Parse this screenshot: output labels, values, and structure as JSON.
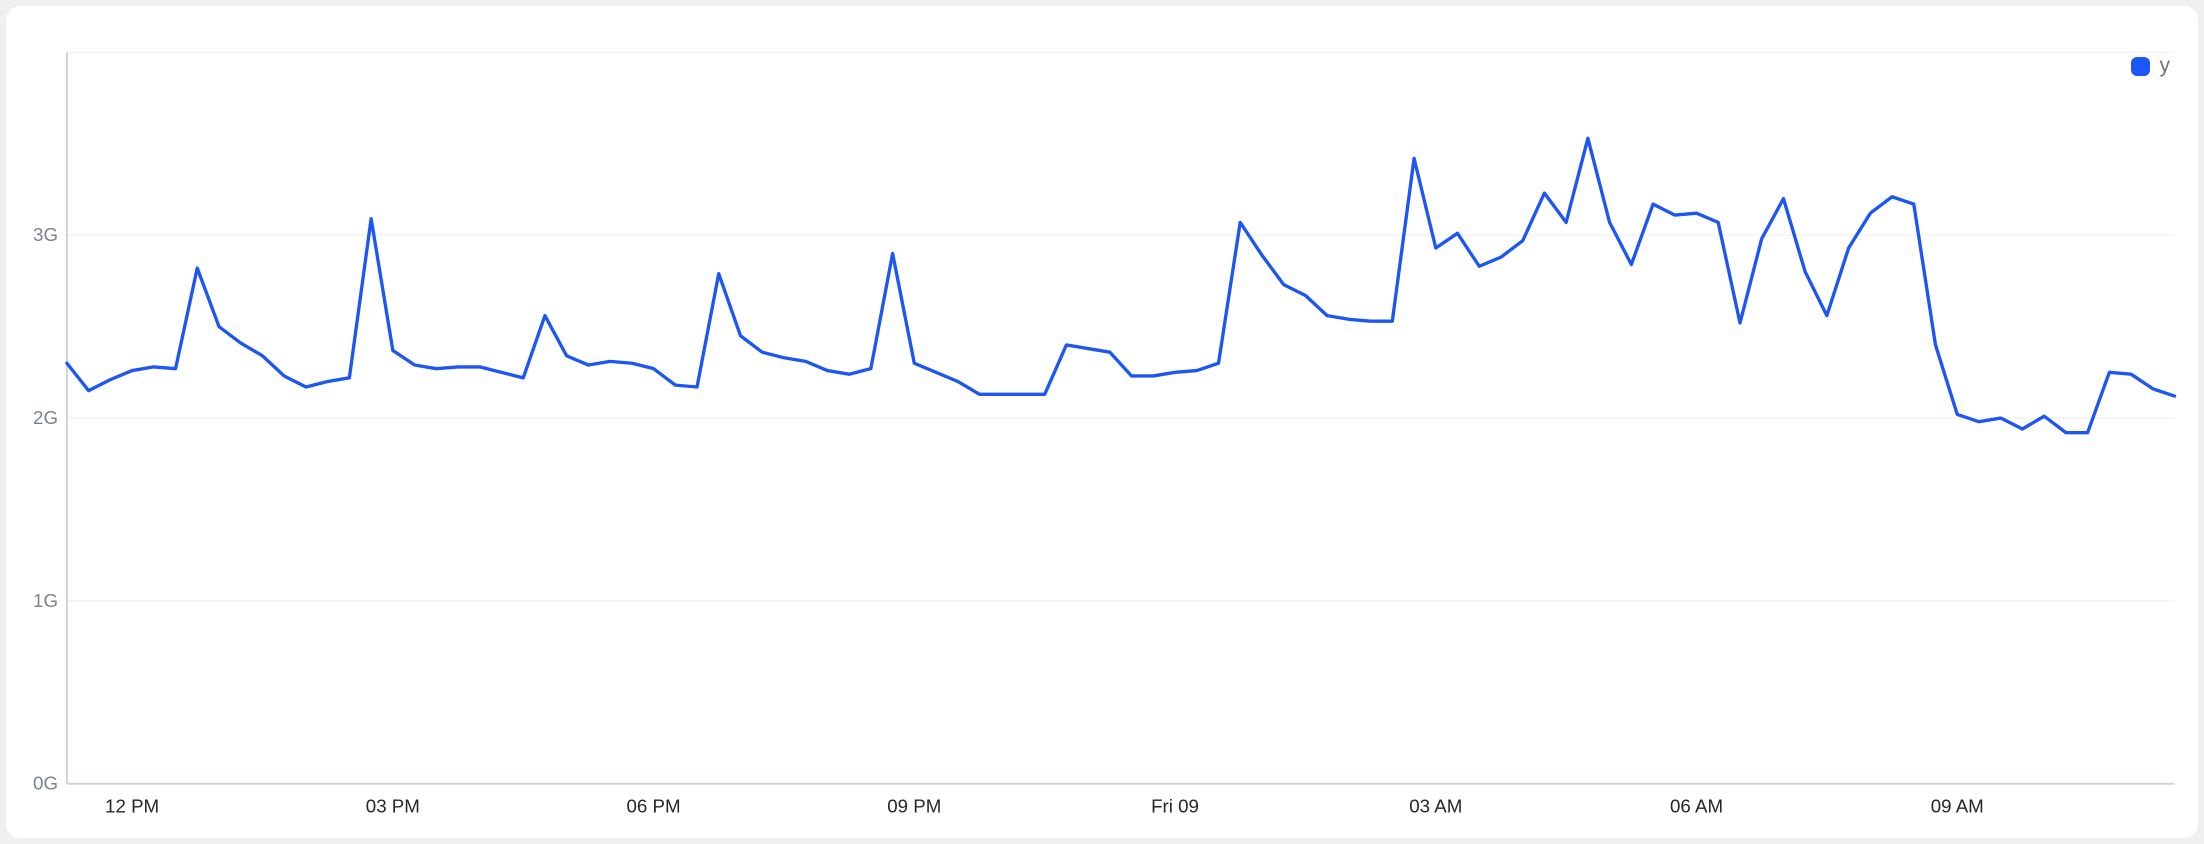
{
  "legend": {
    "items": [
      {
        "label": "y",
        "color": "#1c57f5"
      }
    ]
  },
  "colors": {
    "page_background": "#eef0f2",
    "card_background": "#ffffff",
    "line": "#1c57f5",
    "axis_line": "#ccd3dd",
    "gridline": "#f1f2f4",
    "y_label": "#7b828d",
    "x_label": "#23262b",
    "legend_text": "#6b7280"
  },
  "chart_data": {
    "type": "line",
    "title": "",
    "xlabel": "",
    "ylabel": "",
    "y_unit": "G",
    "ylim": [
      0,
      4
    ],
    "grid": true,
    "legend_position": "top-right",
    "y_tick_values": [
      0,
      1,
      2,
      3
    ],
    "y_tick_labels": [
      "0G",
      "1G",
      "2G",
      "3G"
    ],
    "x_tick_indices": [
      3,
      15,
      27,
      39,
      51,
      63,
      75,
      87
    ],
    "x_tick_labels": [
      "12 PM",
      "03 PM",
      "06 PM",
      "09 PM",
      "Fri 09",
      "03 AM",
      "06 AM",
      "09 AM"
    ],
    "x": [
      "11:15 AM",
      "11:30 AM",
      "11:45 AM",
      "12:00 PM",
      "12:15 PM",
      "12:30 PM",
      "12:45 PM",
      "1:00 PM",
      "1:15 PM",
      "1:30 PM",
      "1:45 PM",
      "2:00 PM",
      "2:15 PM",
      "2:30 PM",
      "2:45 PM",
      "3:00 PM",
      "3:15 PM",
      "3:30 PM",
      "3:45 PM",
      "4:00 PM",
      "4:15 PM",
      "4:30 PM",
      "4:45 PM",
      "5:00 PM",
      "5:15 PM",
      "5:30 PM",
      "5:45 PM",
      "6:00 PM",
      "6:15 PM",
      "6:30 PM",
      "6:45 PM",
      "7:00 PM",
      "7:15 PM",
      "7:30 PM",
      "7:45 PM",
      "8:00 PM",
      "8:15 PM",
      "8:30 PM",
      "8:45 PM",
      "9:00 PM",
      "9:15 PM",
      "9:30 PM",
      "9:45 PM",
      "10:00 PM",
      "10:15 PM",
      "10:30 PM",
      "10:45 PM",
      "11:00 PM",
      "11:15 PM",
      "11:30 PM",
      "11:45 PM",
      "Fri 12:00 AM",
      "12:15 AM",
      "12:30 AM",
      "12:45 AM",
      "1:00 AM",
      "1:15 AM",
      "1:30 AM",
      "1:45 AM",
      "2:00 AM",
      "2:15 AM",
      "2:30 AM",
      "2:45 AM",
      "3:00 AM",
      "3:15 AM",
      "3:30 AM",
      "3:45 AM",
      "4:00 AM",
      "4:15 AM",
      "4:30 AM",
      "4:45 AM",
      "5:00 AM",
      "5:15 AM",
      "5:30 AM",
      "5:45 AM",
      "6:00 AM",
      "6:15 AM",
      "6:30 AM",
      "6:45 AM",
      "7:00 AM",
      "7:15 AM",
      "7:30 AM",
      "7:45 AM",
      "8:00 AM",
      "8:15 AM",
      "8:30 AM",
      "8:45 AM",
      "9:00 AM",
      "9:15 AM",
      "9:30 AM",
      "9:45 AM",
      "10:00 AM",
      "10:15 AM",
      "10:30 AM",
      "10:45 AM",
      "11:00 AM",
      "11:15 AM",
      "11:30 AM"
    ],
    "series": [
      {
        "name": "y",
        "color": "#1c57f5",
        "values": [
          2.3,
          2.15,
          2.21,
          2.26,
          2.28,
          2.27,
          2.82,
          2.5,
          2.41,
          2.34,
          2.23,
          2.17,
          2.2,
          2.22,
          3.09,
          2.37,
          2.29,
          2.27,
          2.28,
          2.28,
          2.25,
          2.22,
          2.56,
          2.34,
          2.29,
          2.31,
          2.3,
          2.27,
          2.18,
          2.17,
          2.79,
          2.45,
          2.36,
          2.33,
          2.31,
          2.26,
          2.24,
          2.27,
          2.9,
          2.3,
          2.25,
          2.2,
          2.13,
          2.13,
          2.13,
          2.13,
          2.4,
          2.38,
          2.36,
          2.23,
          2.23,
          2.25,
          2.26,
          2.3,
          3.07,
          2.89,
          2.73,
          2.67,
          2.56,
          2.54,
          2.53,
          2.53,
          3.42,
          2.93,
          3.01,
          2.83,
          2.88,
          2.97,
          3.23,
          3.07,
          3.53,
          3.07,
          2.84,
          3.17,
          3.11,
          3.12,
          3.07,
          2.52,
          2.98,
          3.2,
          2.8,
          2.56,
          2.93,
          3.12,
          3.21,
          3.17,
          2.4,
          2.02,
          1.98,
          2.0,
          1.94,
          2.01,
          1.92,
          1.92,
          2.25,
          2.24,
          2.16,
          2.12
        ]
      }
    ]
  }
}
